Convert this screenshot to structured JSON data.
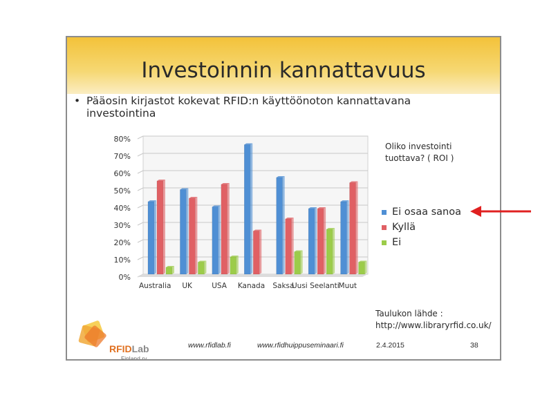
{
  "slide": {
    "title": "Investoinnin kannattavuus",
    "bullet": "Pääosin kirjastot kokevat RFID:n käyttöönoton kannattavana investointina",
    "question": "Oliko investointi tuottava? ( ROI )",
    "source_label": "Taulukon lähde :",
    "source_url": "http://www.libraryrfid.co.uk/",
    "logo": {
      "brand_a": "RFID",
      "brand_b": "Lab",
      "sub": "Finland ry"
    },
    "footer": {
      "site1": "www.rfidlab.fi",
      "site2": "www.rfidhuippuseminaari.fi",
      "date": "2.4.2015",
      "page": "38"
    }
  },
  "chart_data": {
    "type": "bar",
    "categories": [
      "Australia",
      "UK",
      "USA",
      "Kanada",
      "Saksa",
      "Uusi Seelanti",
      "Muut"
    ],
    "series": [
      {
        "name": "Ei osaa sanoa",
        "color": "#4f8fd4",
        "values": [
          42,
          49,
          39,
          75,
          56,
          38,
          42
        ]
      },
      {
        "name": "Kyllä",
        "color": "#e06064",
        "values": [
          54,
          44,
          52,
          25,
          32,
          38,
          53
        ]
      },
      {
        "name": "Ei",
        "color": "#9ccc4a",
        "values": [
          4,
          7,
          10,
          0,
          13,
          26,
          7
        ]
      }
    ],
    "yticks": [
      "0%",
      "10%",
      "20%",
      "30%",
      "40%",
      "50%",
      "60%",
      "70%",
      "80%"
    ],
    "ylim": [
      0,
      80
    ],
    "legend_position": "right",
    "grid": true
  },
  "colors": {
    "header": "#f3c23a",
    "arrow": "#e02020"
  }
}
